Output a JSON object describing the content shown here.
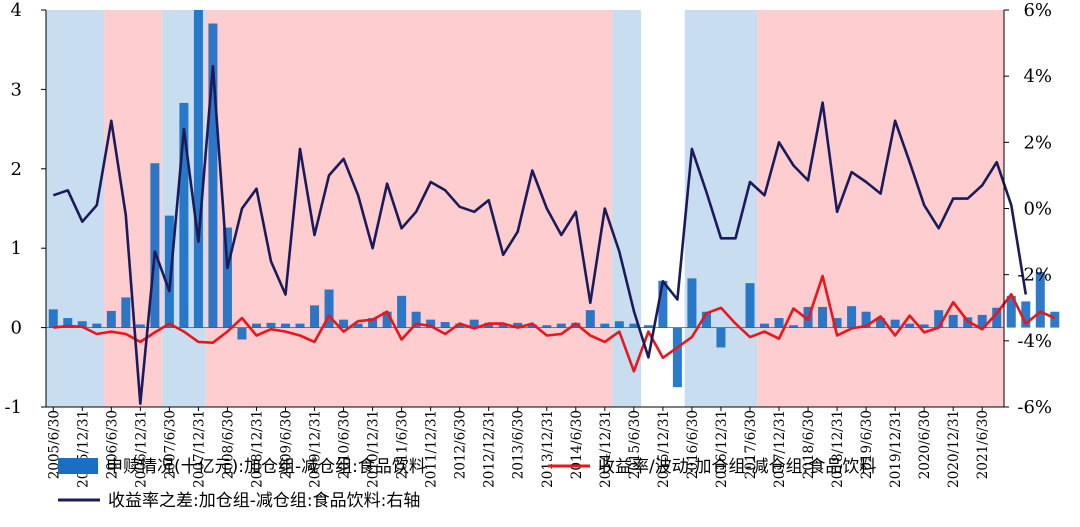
{
  "colors": {
    "shade_blue": "#c9ddf0",
    "shade_red": "#fdcdcf",
    "bar": "#1a6fc4",
    "bar_dark": "#3a5a9a",
    "line_red": "#e8161d",
    "line_navy": "#1c1b5a"
  },
  "chart_data": {
    "type": "bar+line",
    "left_axis": {
      "ylim": [
        -1,
        4
      ],
      "ticks": [
        "4",
        "3",
        "2",
        "1",
        "0",
        "-1"
      ],
      "tick_values": [
        4,
        3,
        2,
        1,
        0,
        -1
      ]
    },
    "right_axis": {
      "ylim": [
        -6,
        6
      ],
      "ticks": [
        "6%",
        "4%",
        "2%",
        "0%",
        "-2%",
        "-4%",
        "-6%"
      ],
      "tick_values": [
        6,
        4,
        2,
        0,
        -2,
        -4,
        -6
      ]
    },
    "x_tick_labels": [
      "2005/6/30",
      "2005/12/31",
      "2006/6/30",
      "2006/12/31",
      "2007/6/30",
      "2007/12/31",
      "2008/6/30",
      "2008/12/31",
      "2009/6/30",
      "2009/12/31",
      "2010/6/30",
      "2010/12/31",
      "2011/6/30",
      "2011/12/31",
      "2012/6/30",
      "2012/12/31",
      "2013/6/30",
      "2013/12/31",
      "2014/6/30",
      "2014/12/31",
      "2015/6/30",
      "2015/12/31",
      "2016/6/30",
      "2016/12/31",
      "2017/6/30",
      "2017/12/31",
      "2018/6/30",
      "2018/12/31",
      "2019/6/30",
      "2019/12/31",
      "2020/6/30",
      "2020/12/31",
      "2021/6/30"
    ],
    "shaded_regions": [
      {
        "from": 0,
        "to": 4,
        "type": "blue"
      },
      {
        "from": 4,
        "to": 8,
        "type": "red"
      },
      {
        "from": 8,
        "to": 11,
        "type": "blue"
      },
      {
        "from": 11,
        "to": 39,
        "type": "red"
      },
      {
        "from": 39,
        "to": 41,
        "type": "blue"
      },
      {
        "from": 44,
        "to": 49,
        "type": "blue"
      },
      {
        "from": 49,
        "to": 66,
        "type": "red"
      }
    ],
    "series": [
      {
        "name": "申赎情况(十亿元):加仓组-减仓组:食品饮料",
        "axis": "left",
        "kind": "bar",
        "values": [
          0.23,
          0.12,
          0.08,
          0.05,
          0.21,
          0.38,
          0.04,
          2.07,
          1.41,
          2.83,
          4.0,
          3.83,
          1.26,
          -0.15,
          0.05,
          0.06,
          0.05,
          0.05,
          0.28,
          0.48,
          0.1,
          0.05,
          0.12,
          0.2,
          0.4,
          0.2,
          0.1,
          0.07,
          0.05,
          0.1,
          0.06,
          0.05,
          0.06,
          0.04,
          0.03,
          0.05,
          0.06,
          0.22,
          0.05,
          0.08,
          0.05,
          0.03,
          0.59,
          -0.75,
          0.62,
          0.2,
          -0.25,
          0.0,
          0.56,
          0.05,
          0.12,
          0.03,
          0.26,
          0.26,
          0.12,
          0.27,
          0.2,
          0.12,
          0.1,
          0.05,
          0.04,
          0.22,
          0.16,
          0.13,
          0.16,
          0.25,
          0.4,
          0.33,
          0.7,
          0.2
        ]
      },
      {
        "name": "收益率/波动:加仓组-减仓组:食品饮料",
        "axis": "left",
        "kind": "line",
        "values": [
          0.0,
          0.02,
          0.01,
          -0.08,
          -0.05,
          -0.08,
          -0.18,
          -0.06,
          0.05,
          -0.05,
          -0.18,
          -0.19,
          -0.05,
          0.12,
          -0.1,
          -0.02,
          -0.05,
          -0.1,
          -0.18,
          0.15,
          -0.05,
          0.08,
          0.1,
          0.2,
          -0.15,
          0.05,
          0.02,
          -0.08,
          0.05,
          -0.01,
          0.05,
          0.05,
          0.0,
          0.05,
          -0.1,
          -0.08,
          0.05,
          -0.1,
          -0.18,
          -0.05,
          -0.55,
          -0.05,
          -0.38,
          -0.25,
          -0.12,
          0.18,
          0.25,
          0.05,
          -0.12,
          -0.05,
          -0.14,
          0.24,
          0.1,
          0.65,
          -0.1,
          -0.01,
          0.02,
          0.14,
          -0.1,
          0.15,
          -0.06,
          0.0,
          0.32,
          0.08,
          -0.02,
          0.18,
          0.42,
          0.05,
          0.2,
          0.12
        ]
      },
      {
        "name": "收益率之差:加仓组-减仓组:食品饮料:右轴",
        "axis": "right",
        "kind": "line",
        "values": [
          0.4,
          0.55,
          -0.4,
          0.1,
          2.65,
          -0.2,
          -5.9,
          -1.3,
          -2.5,
          2.4,
          -1.0,
          4.3,
          -1.8,
          0.0,
          0.6,
          -1.6,
          -2.6,
          1.8,
          -0.8,
          1.0,
          1.5,
          0.4,
          -1.2,
          0.75,
          -0.6,
          -0.1,
          0.8,
          0.55,
          0.05,
          -0.1,
          0.25,
          -1.4,
          -0.7,
          1.15,
          0.0,
          -0.8,
          -0.1,
          -2.85,
          0.0,
          -1.3,
          -3.1,
          -4.5,
          -2.2,
          -2.75,
          1.8,
          0.5,
          -0.9,
          -0.9,
          0.8,
          0.4,
          2.0,
          1.3,
          0.85,
          3.2,
          -0.1,
          1.1,
          0.8,
          0.45,
          2.65,
          1.4,
          0.1,
          -0.6,
          0.3,
          0.3,
          0.7,
          1.4,
          0.1,
          -2.6
        ]
      }
    ],
    "legend": [
      {
        "label": "申赎情况(十亿元):加仓组-减仓组:食品饮料",
        "symbol": "bar"
      },
      {
        "label": "收益率/波动:加仓组-减仓组:食品饮料",
        "symbol": "line-red"
      },
      {
        "label": "收益率之差:加仓组-减仓组:食品饮料:右轴",
        "symbol": "line-navy"
      }
    ]
  }
}
